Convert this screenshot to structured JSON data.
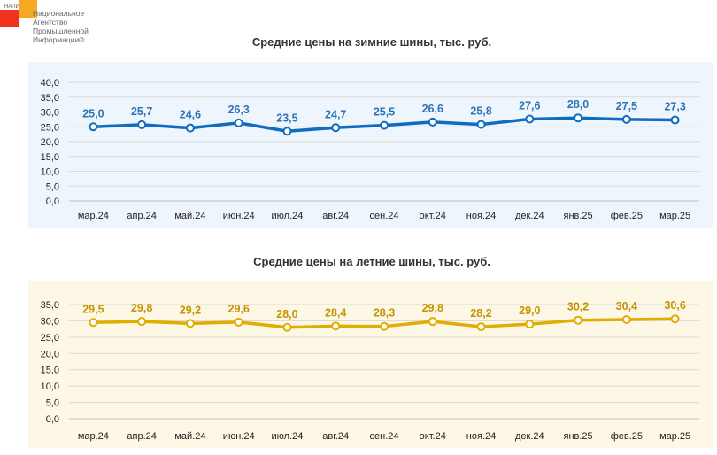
{
  "logo": {
    "abbr": "НАПИ",
    "text": "Национальное\nАгентство\nПромышленной\nИнформации®"
  },
  "chart_data": [
    {
      "type": "line",
      "title": "Средние цены на зимние шины, тыс. руб.",
      "categories": [
        "мар.24",
        "апр.24",
        "май.24",
        "июн.24",
        "июл.24",
        "авг.24",
        "сен.24",
        "окт.24",
        "ноя.24",
        "дек.24",
        "янв.25",
        "фев.25",
        "мар.25"
      ],
      "values": [
        25.0,
        25.7,
        24.6,
        26.3,
        23.5,
        24.7,
        25.5,
        26.6,
        25.8,
        27.6,
        28.0,
        27.5,
        27.3
      ],
      "value_labels": [
        "25,0",
        "25,7",
        "24,6",
        "26,3",
        "23,5",
        "24,7",
        "25,5",
        "26,6",
        "25,8",
        "27,6",
        "28,0",
        "27,5",
        "27,3"
      ],
      "ylim": [
        0,
        40
      ],
      "yticks": [
        "0,0",
        "5,0",
        "10,0",
        "15,0",
        "20,0",
        "25,0",
        "30,0",
        "35,0",
        "40,0"
      ],
      "line_color": "#0f6cc0",
      "label_color": "#2e75b6",
      "bg": "#eef5fc",
      "grid": true
    },
    {
      "type": "line",
      "title": "Средние цены на летние шины, тыс. руб.",
      "categories": [
        "мар.24",
        "апр.24",
        "май.24",
        "июн.24",
        "июл.24",
        "авг.24",
        "сен.24",
        "окт.24",
        "ноя.24",
        "дек.24",
        "янв.25",
        "фев.25",
        "мар.25"
      ],
      "values": [
        29.5,
        29.8,
        29.2,
        29.6,
        28.0,
        28.4,
        28.3,
        29.8,
        28.2,
        29.0,
        30.2,
        30.4,
        30.6
      ],
      "value_labels": [
        "29,5",
        "29,8",
        "29,2",
        "29,6",
        "28,0",
        "28,4",
        "28,3",
        "29,8",
        "28,2",
        "29,0",
        "30,2",
        "30,4",
        "30,6"
      ],
      "ylim": [
        0,
        35
      ],
      "yticks": [
        "0,0",
        "5,0",
        "10,0",
        "15,0",
        "20,0",
        "25,0",
        "30,0",
        "35,0"
      ],
      "line_color": "#e3ac00",
      "label_color": "#c49400",
      "bg": "#fdf7e6",
      "grid": true
    }
  ]
}
